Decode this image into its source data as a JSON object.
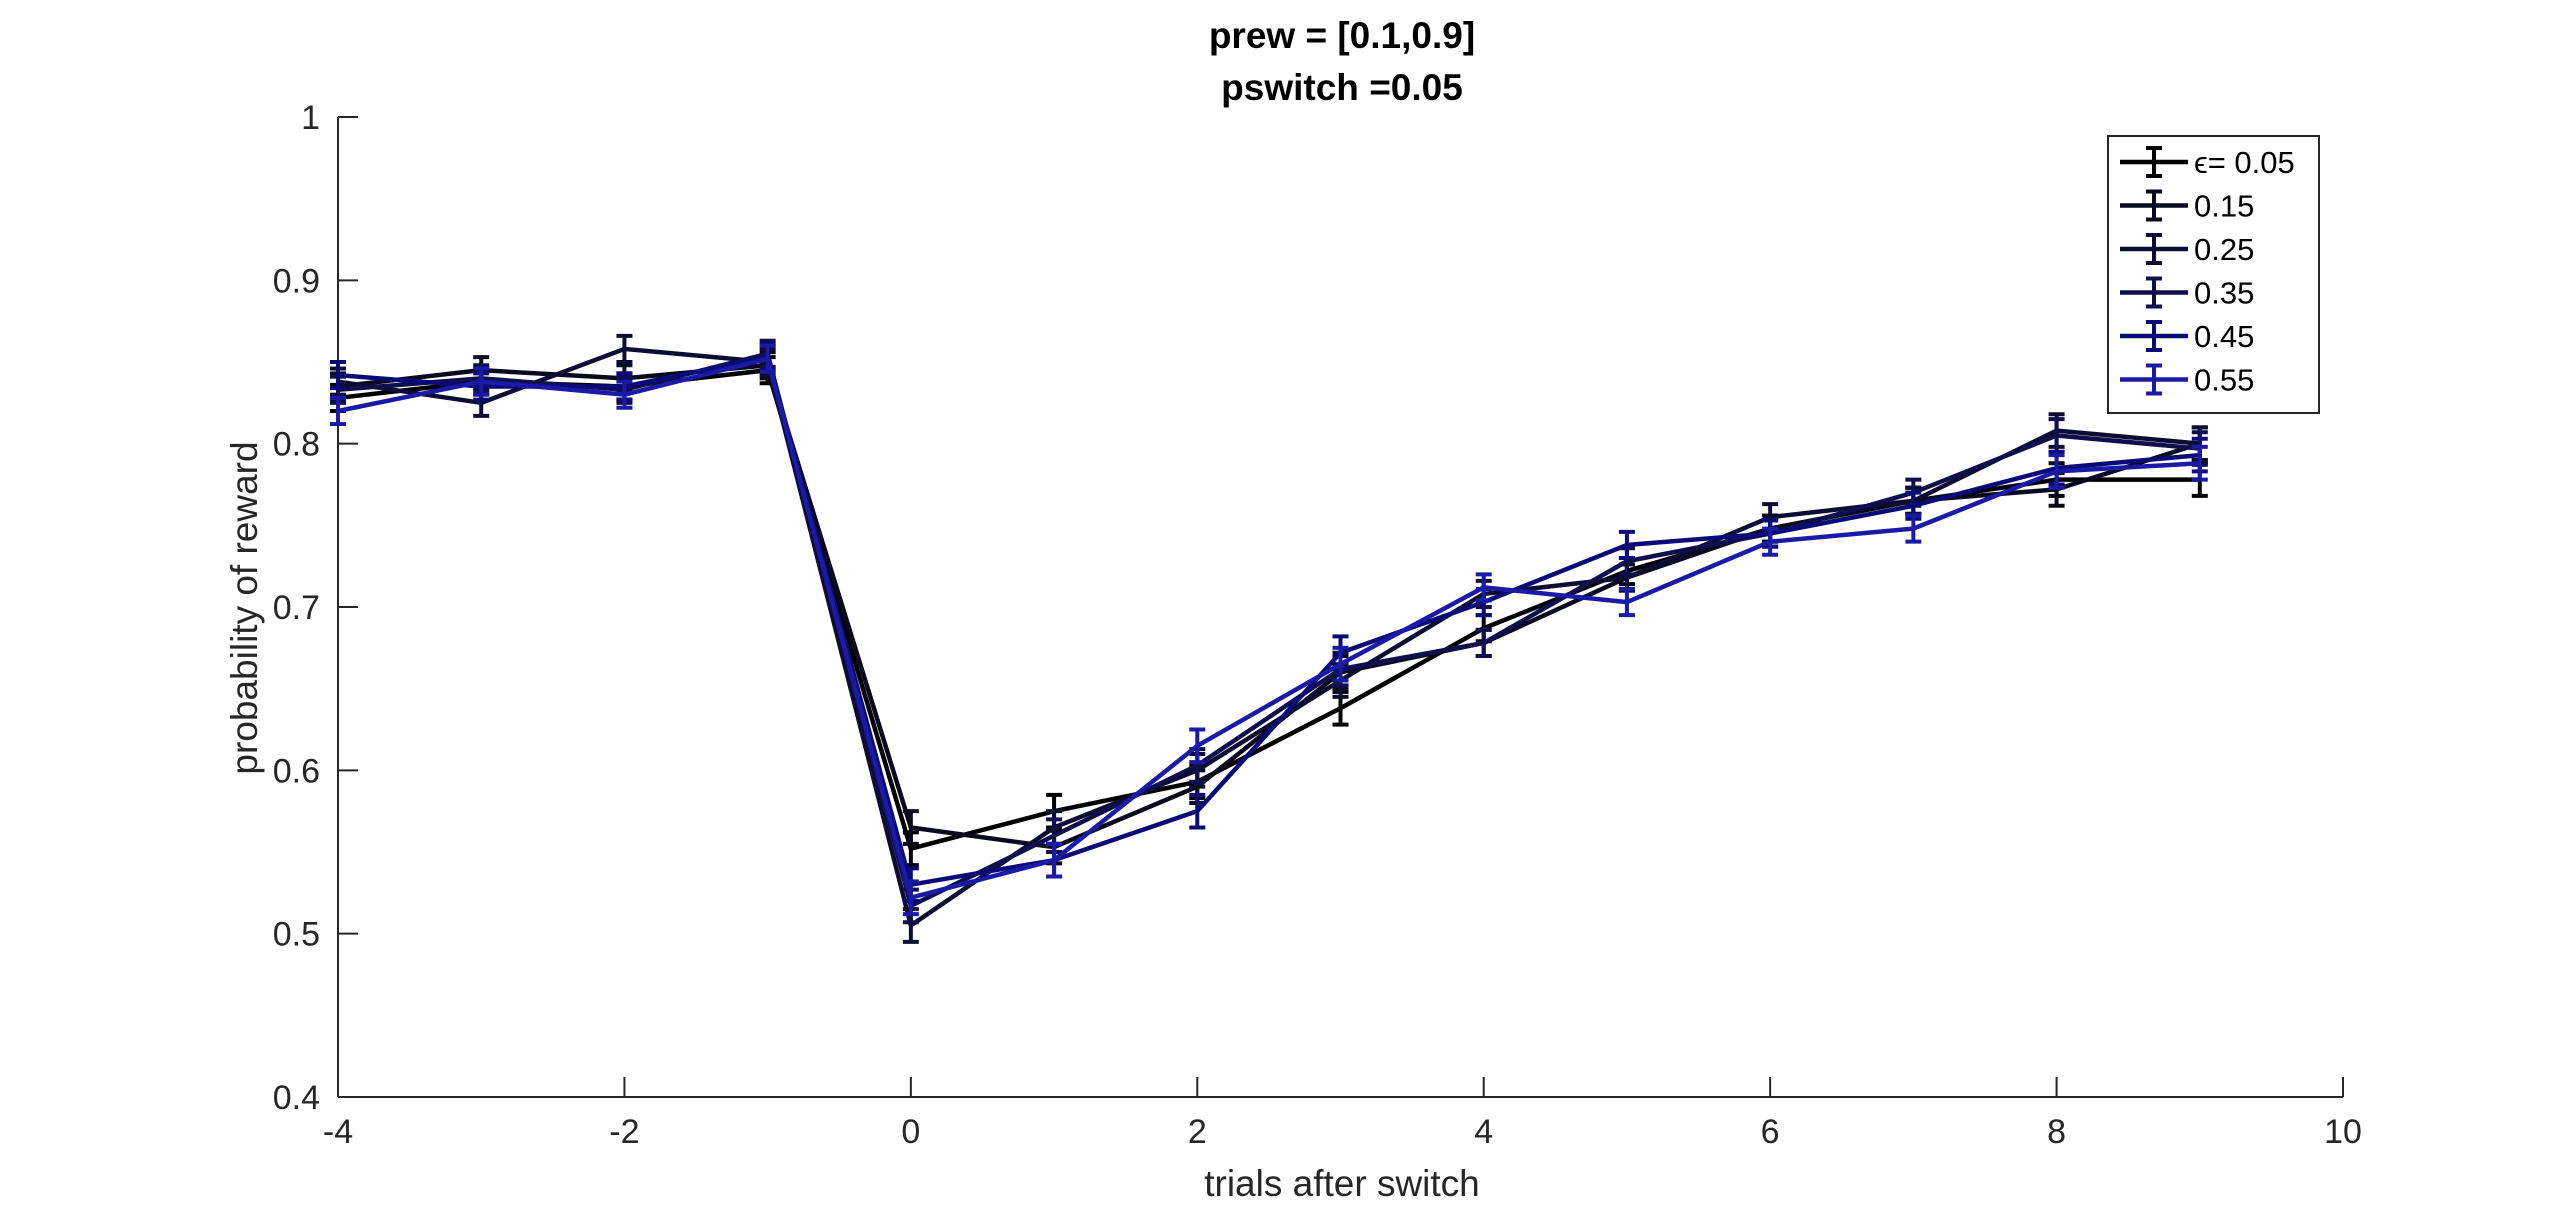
{
  "chart_data": {
    "type": "line",
    "title": [
      "prew = [0.1,0.9]",
      "pswitch =0.05"
    ],
    "xlabel": "trials after switch",
    "ylabel": "probability of reward",
    "xlim": [
      -4,
      10
    ],
    "ylim": [
      0.4,
      1
    ],
    "xticks": [
      -4,
      -2,
      0,
      2,
      4,
      6,
      8,
      10
    ],
    "xtick_labels": [
      "-4",
      "-2",
      "0",
      "2",
      "4",
      "6",
      "8",
      "10"
    ],
    "yticks": [
      0.4,
      0.5,
      0.6,
      0.7,
      0.8,
      0.9,
      1
    ],
    "ytick_labels": [
      "0.4",
      "0.5",
      "0.6",
      "0.7",
      "0.8",
      "0.9",
      "1"
    ],
    "grid": false,
    "legend_position": "top-right",
    "error_bars": true,
    "x": [
      -4,
      -3,
      -2,
      -1,
      0,
      1,
      2,
      3,
      4,
      5,
      6,
      7,
      8,
      9
    ],
    "series": [
      {
        "name": "ϵ= 0.05",
        "color": "#000000",
        "values": [
          0.828,
          0.838,
          0.835,
          0.845,
          0.552,
          0.575,
          0.593,
          0.638,
          0.687,
          0.722,
          0.748,
          0.765,
          0.778,
          0.778
        ],
        "errors": [
          0.008,
          0.008,
          0.008,
          0.008,
          0.01,
          0.01,
          0.01,
          0.01,
          0.008,
          0.008,
          0.008,
          0.008,
          0.01,
          0.01
        ]
      },
      {
        "name": "0.15",
        "color": "#0a0a1e",
        "values": [
          0.835,
          0.845,
          0.84,
          0.848,
          0.565,
          0.553,
          0.59,
          0.66,
          0.678,
          0.718,
          0.748,
          0.765,
          0.772,
          0.8
        ],
        "errors": [
          0.008,
          0.008,
          0.008,
          0.008,
          0.01,
          0.01,
          0.01,
          0.01,
          0.008,
          0.008,
          0.008,
          0.008,
          0.01,
          0.01
        ]
      },
      {
        "name": "0.25",
        "color": "#0d0d33",
        "values": [
          0.838,
          0.825,
          0.858,
          0.85,
          0.505,
          0.565,
          0.6,
          0.655,
          0.708,
          0.718,
          0.755,
          0.765,
          0.808,
          0.8
        ],
        "errors": [
          0.008,
          0.008,
          0.008,
          0.008,
          0.01,
          0.01,
          0.01,
          0.01,
          0.008,
          0.008,
          0.008,
          0.008,
          0.01,
          0.01
        ]
      },
      {
        "name": "0.35",
        "color": "#0f0f4d",
        "values": [
          0.833,
          0.84,
          0.833,
          0.855,
          0.517,
          0.56,
          0.603,
          0.662,
          0.678,
          0.728,
          0.745,
          0.77,
          0.805,
          0.797
        ],
        "errors": [
          0.008,
          0.008,
          0.008,
          0.008,
          0.01,
          0.01,
          0.01,
          0.01,
          0.008,
          0.008,
          0.008,
          0.008,
          0.01,
          0.01
        ]
      },
      {
        "name": "0.45",
        "color": "#0b0b78",
        "values": [
          0.842,
          0.835,
          0.835,
          0.853,
          0.53,
          0.545,
          0.575,
          0.672,
          0.703,
          0.738,
          0.745,
          0.762,
          0.785,
          0.793
        ],
        "errors": [
          0.008,
          0.008,
          0.008,
          0.008,
          0.01,
          0.01,
          0.01,
          0.01,
          0.008,
          0.008,
          0.008,
          0.008,
          0.01,
          0.01
        ]
      },
      {
        "name": "0.55",
        "color": "#1a1aa6",
        "values": [
          0.82,
          0.838,
          0.83,
          0.852,
          0.522,
          0.545,
          0.615,
          0.665,
          0.712,
          0.703,
          0.74,
          0.748,
          0.783,
          0.788
        ],
        "errors": [
          0.008,
          0.008,
          0.008,
          0.008,
          0.01,
          0.01,
          0.01,
          0.01,
          0.008,
          0.008,
          0.008,
          0.008,
          0.01,
          0.01
        ]
      }
    ]
  }
}
